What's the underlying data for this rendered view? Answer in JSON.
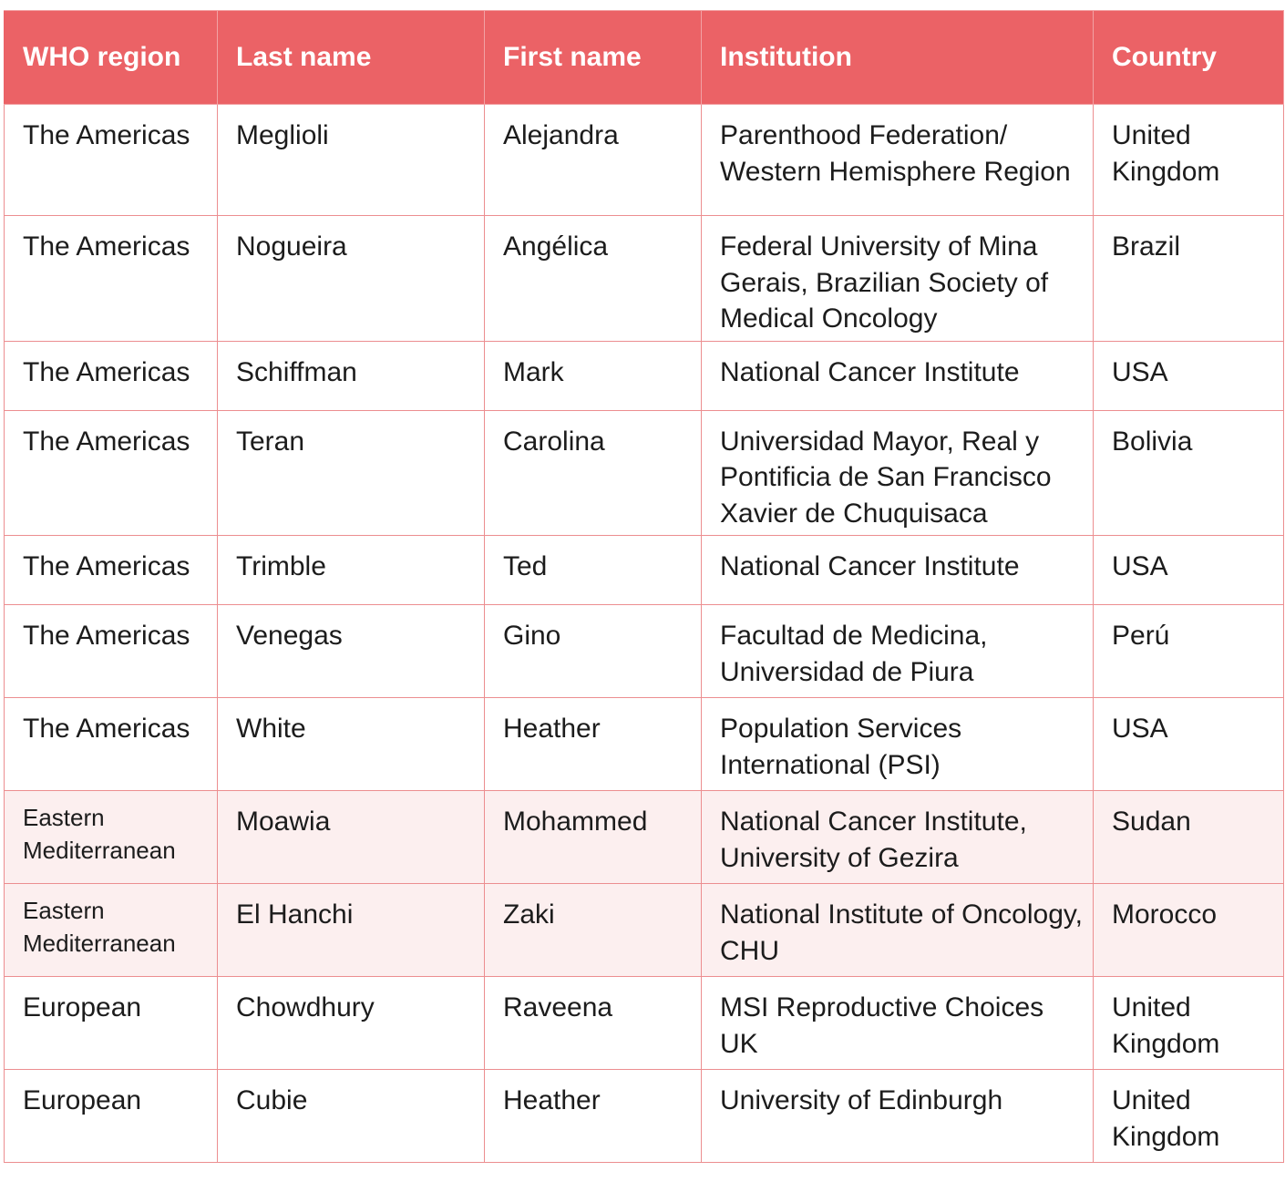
{
  "table": {
    "headers": [
      "WHO region",
      "Last name",
      "First name",
      "Institution",
      "Country"
    ],
    "rows": [
      {
        "region": "The Americas",
        "last": "Meglioli",
        "first": "Alejandra",
        "institution": "Parenthood Federation/ Western Hemisphere Region",
        "country": "United Kingdom"
      },
      {
        "region": "The Americas",
        "last": "Nogueira",
        "first": "Angélica",
        "institution": "Federal University of Mina Gerais, Brazilian Society of Medical Oncology",
        "country": "Brazil"
      },
      {
        "region": "The Americas",
        "last": "Schiffman",
        "first": "Mark",
        "institution": "National Cancer Institute",
        "country": "USA"
      },
      {
        "region": "The Americas",
        "last": "Teran",
        "first": "Carolina",
        "institution": "Universidad Mayor, Real y Pontificia de San Francisco Xavier de Chuquisaca",
        "country": "Bolivia"
      },
      {
        "region": "The Americas",
        "last": "Trimble",
        "first": "Ted",
        "institution": "National Cancer Institute",
        "country": "USA"
      },
      {
        "region": "The Americas",
        "last": "Venegas",
        "first": "Gino",
        "institution": "Facultad de Medicina, Universidad de Piura",
        "country": "Perú"
      },
      {
        "region": "The Americas",
        "last": "White",
        "first": "Heather",
        "institution": "Population Services International (PSI)",
        "country": "USA"
      },
      {
        "region": "Eastern Mediterranean",
        "last": "Moawia",
        "first": "Mohammed",
        "institution": "National Cancer Institute, University of Gezira",
        "country": "Sudan"
      },
      {
        "region": "Eastern Mediterranean",
        "last": "El Hanchi",
        "first": "Zaki",
        "institution": "National Institute of Oncology, CHU",
        "country": "Morocco"
      },
      {
        "region": "European",
        "last": "Chowdhury",
        "first": "Raveena",
        "institution": "MSI Reproductive Choices UK",
        "country": "United Kingdom"
      },
      {
        "region": "European",
        "last": "Cubie",
        "first": "Heather",
        "institution": "University of Edinburgh",
        "country": "United Kingdom"
      }
    ]
  },
  "colors": {
    "header_bg": "#eb6266",
    "border": "#ec8e90",
    "alt_row_bg": "#fcefef"
  }
}
